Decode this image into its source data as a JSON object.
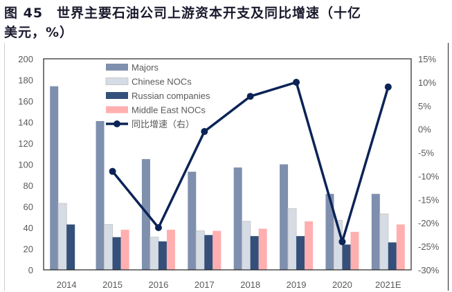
{
  "chart_data": {
    "type": "bar+line",
    "title_line1": "图 45　世界主要石油公司上游资本开支及同比增速（十亿",
    "title_line2": "美元，%）",
    "categories": [
      "2014",
      "2015",
      "2016",
      "2017",
      "2018",
      "2019",
      "2020",
      "2021E"
    ],
    "series": [
      {
        "name": "Majors",
        "type": "bar",
        "axis": "left",
        "color": "#7f8fae",
        "values": [
          174,
          141,
          105,
          93,
          97,
          100,
          72,
          72
        ]
      },
      {
        "name": "Chinese NOCs",
        "type": "bar",
        "axis": "left",
        "color": "#d6dce5",
        "values": [
          63,
          43,
          31,
          37,
          46,
          58,
          47,
          53
        ]
      },
      {
        "name": "Russian companies",
        "type": "bar",
        "axis": "left",
        "color": "#34507a",
        "values": [
          43,
          31,
          27,
          33,
          32,
          32,
          24,
          26
        ]
      },
      {
        "name": "Middle East NOCs",
        "type": "bar",
        "axis": "left",
        "color": "#ffafb0",
        "values": [
          null,
          38,
          38,
          37,
          39,
          46,
          36,
          43
        ]
      },
      {
        "name": "同比增速（右）",
        "type": "line",
        "axis": "right",
        "color": "#0b2356",
        "values": [
          null,
          -9,
          -21,
          -0.5,
          7,
          10,
          -24,
          9
        ]
      }
    ],
    "yleft": {
      "min": 0,
      "max": 200,
      "step": 20,
      "ticks": [
        "0",
        "20",
        "40",
        "60",
        "80",
        "100",
        "120",
        "140",
        "160",
        "180",
        "200"
      ]
    },
    "yright": {
      "min": -30,
      "max": 15,
      "step": 5,
      "ticks": [
        "-30%",
        "-25%",
        "-20%",
        "-15%",
        "-10%",
        "-5%",
        "0%",
        "5%",
        "10%",
        "15%"
      ]
    },
    "legend_placement": "top-left inside"
  }
}
